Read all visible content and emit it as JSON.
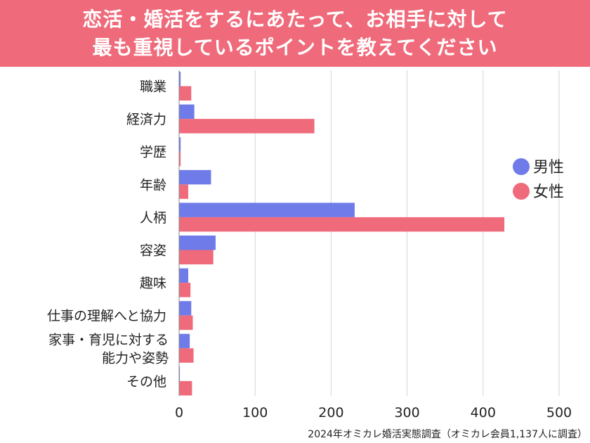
{
  "chart_data": {
    "type": "bar",
    "orientation": "horizontal",
    "title_lines": [
      "恋活・婚活をするにあたって、お相手に対して",
      "最も重視しているポイントを教えてください"
    ],
    "categories": [
      [
        "職業"
      ],
      [
        "経済力"
      ],
      [
        "学歴"
      ],
      [
        "年齢"
      ],
      [
        "人柄"
      ],
      [
        "容姿"
      ],
      [
        "趣味"
      ],
      [
        "仕事の理解へと協力"
      ],
      [
        "家事・育児に対する",
        "能力や姿勢"
      ],
      [
        "その他"
      ]
    ],
    "series": [
      {
        "name": "男性",
        "color": "#6f7be8",
        "values": [
          2,
          20,
          2,
          42,
          231,
          48,
          12,
          16,
          14,
          1
        ]
      },
      {
        "name": "女性",
        "color": "#ef6b7b",
        "values": [
          16,
          178,
          2,
          12,
          428,
          45,
          15,
          18,
          19,
          17
        ]
      }
    ],
    "xlim": [
      0,
      500
    ],
    "xticks": [
      0,
      100,
      200,
      300,
      400,
      500
    ],
    "grid": true,
    "legend_position": "right",
    "source": "2024年オミカレ婚活実態調査（オミカレ会員1,137人に調査）"
  }
}
